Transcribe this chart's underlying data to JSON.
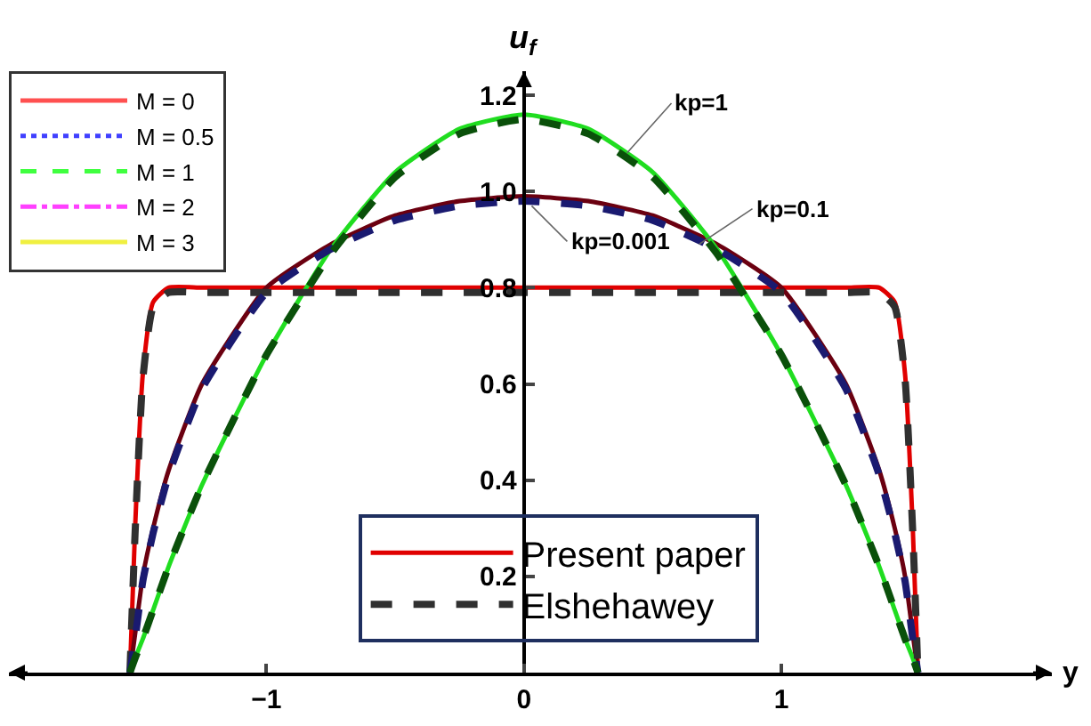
{
  "chart_data": {
    "type": "line",
    "xlabel": "y",
    "ylabel": "u$_{f}$",
    "x": [
      -1.53,
      -1.51,
      -1.48,
      -1.44,
      -1.38,
      -1.25,
      -1.0,
      -0.75,
      -0.5,
      -0.25,
      0,
      0.25,
      0.5,
      0.75,
      1.0,
      1.25,
      1.38,
      1.44,
      1.48,
      1.51,
      1.53
    ],
    "series": [
      {
        "name": "M = 0",
        "color": "#ff5050",
        "line_style": "solid",
        "values": [
          null,
          null,
          null,
          null,
          null,
          null,
          null,
          null,
          null,
          null,
          null,
          null,
          null,
          null,
          null,
          null,
          null,
          null,
          null,
          null,
          null
        ]
      },
      {
        "name": "M = 0.5",
        "color": "#4040ff",
        "line_style": "dotted",
        "values": [
          null,
          null,
          null,
          null,
          null,
          null,
          null,
          null,
          null,
          null,
          null,
          null,
          null,
          null,
          null,
          null,
          null,
          null,
          null,
          null,
          null
        ]
      },
      {
        "name": "M = 1",
        "color": "#40ff40",
        "line_style": "dashed",
        "values": [
          null,
          null,
          null,
          null,
          null,
          null,
          null,
          null,
          null,
          null,
          null,
          null,
          null,
          null,
          null,
          null,
          null,
          null,
          null,
          null,
          null
        ]
      },
      {
        "name": "M = 2",
        "color": "#ff40ff",
        "line_style": "dashdot",
        "values": [
          null,
          null,
          null,
          null,
          null,
          null,
          null,
          null,
          null,
          null,
          null,
          null,
          null,
          null,
          null,
          null,
          null,
          null,
          null,
          null,
          null
        ]
      },
      {
        "name": "M = 3",
        "color": "#f0f040",
        "line_style": "solid",
        "values": [
          null,
          null,
          null,
          null,
          null,
          null,
          null,
          null,
          null,
          null,
          null,
          null,
          null,
          null,
          null,
          null,
          null,
          null,
          null,
          null,
          null
        ]
      },
      {
        "name": "Present paper",
        "color": "#e00000",
        "line_style": "solid",
        "values": [
          0,
          0.3,
          0.62,
          0.77,
          0.8,
          0.8,
          0.8,
          0.8,
          0.8,
          0.8,
          0.8,
          0.8,
          0.8,
          0.8,
          0.8,
          0.8,
          0.8,
          0.77,
          0.62,
          0.3,
          0
        ]
      },
      {
        "color": "#6b0010",
        "line_style": "solid",
        "values": [
          0,
          0.08,
          0.2,
          0.3,
          0.42,
          0.6,
          0.8,
          0.89,
          0.95,
          0.98,
          0.99,
          0.98,
          0.95,
          0.89,
          0.8,
          0.6,
          0.42,
          0.3,
          0.2,
          0.08,
          0
        ]
      },
      {
        "color": "#20dd20",
        "line_style": "solid",
        "values": [
          0,
          0.03,
          0.07,
          0.13,
          0.22,
          0.39,
          0.66,
          0.88,
          1.04,
          1.13,
          1.16,
          1.13,
          1.04,
          0.88,
          0.66,
          0.39,
          0.22,
          0.13,
          0.07,
          0.03,
          0
        ]
      },
      {
        "name": "Elshehawey",
        "color": "#303030",
        "line_style": "dashed",
        "values": [
          0,
          0.29,
          0.61,
          0.76,
          0.79,
          0.79,
          0.79,
          0.79,
          0.79,
          0.79,
          0.79,
          0.79,
          0.79,
          0.79,
          0.79,
          0.79,
          0.79,
          0.76,
          0.61,
          0.29,
          0
        ]
      },
      {
        "color": "#1a1a70",
        "line_style": "dashed",
        "values": [
          0,
          0.07,
          0.19,
          0.29,
          0.41,
          0.59,
          0.79,
          0.88,
          0.94,
          0.97,
          0.98,
          0.97,
          0.94,
          0.88,
          0.79,
          0.59,
          0.41,
          0.29,
          0.19,
          0.07,
          0
        ]
      },
      {
        "color": "#0a500a",
        "line_style": "dashed",
        "values": [
          0,
          0.03,
          0.07,
          0.13,
          0.22,
          0.39,
          0.66,
          0.87,
          1.03,
          1.12,
          1.15,
          1.12,
          1.03,
          0.87,
          0.66,
          0.39,
          0.22,
          0.13,
          0.07,
          0.03,
          0
        ]
      }
    ],
    "xlim": [
      -2.0,
      2.05
    ],
    "ylim": [
      0,
      1.25
    ],
    "xticks": [
      {
        "value": -1,
        "label": "−1"
      },
      0,
      1
    ],
    "yticks": [
      0.2,
      0.4,
      0.6,
      0.8,
      {
        "value": 1.0,
        "label": "1.0"
      },
      1.2
    ],
    "annotations": [
      {
        "text": "kp=1",
        "x": 0.4,
        "y": 1.08
      },
      {
        "text": "kp=0.1",
        "x": 0.68,
        "y": 0.89
      },
      {
        "text": "kp=0.001",
        "x": 0.03,
        "y": 0.97
      }
    ],
    "legend": "top left",
    "marker": "none"
  }
}
